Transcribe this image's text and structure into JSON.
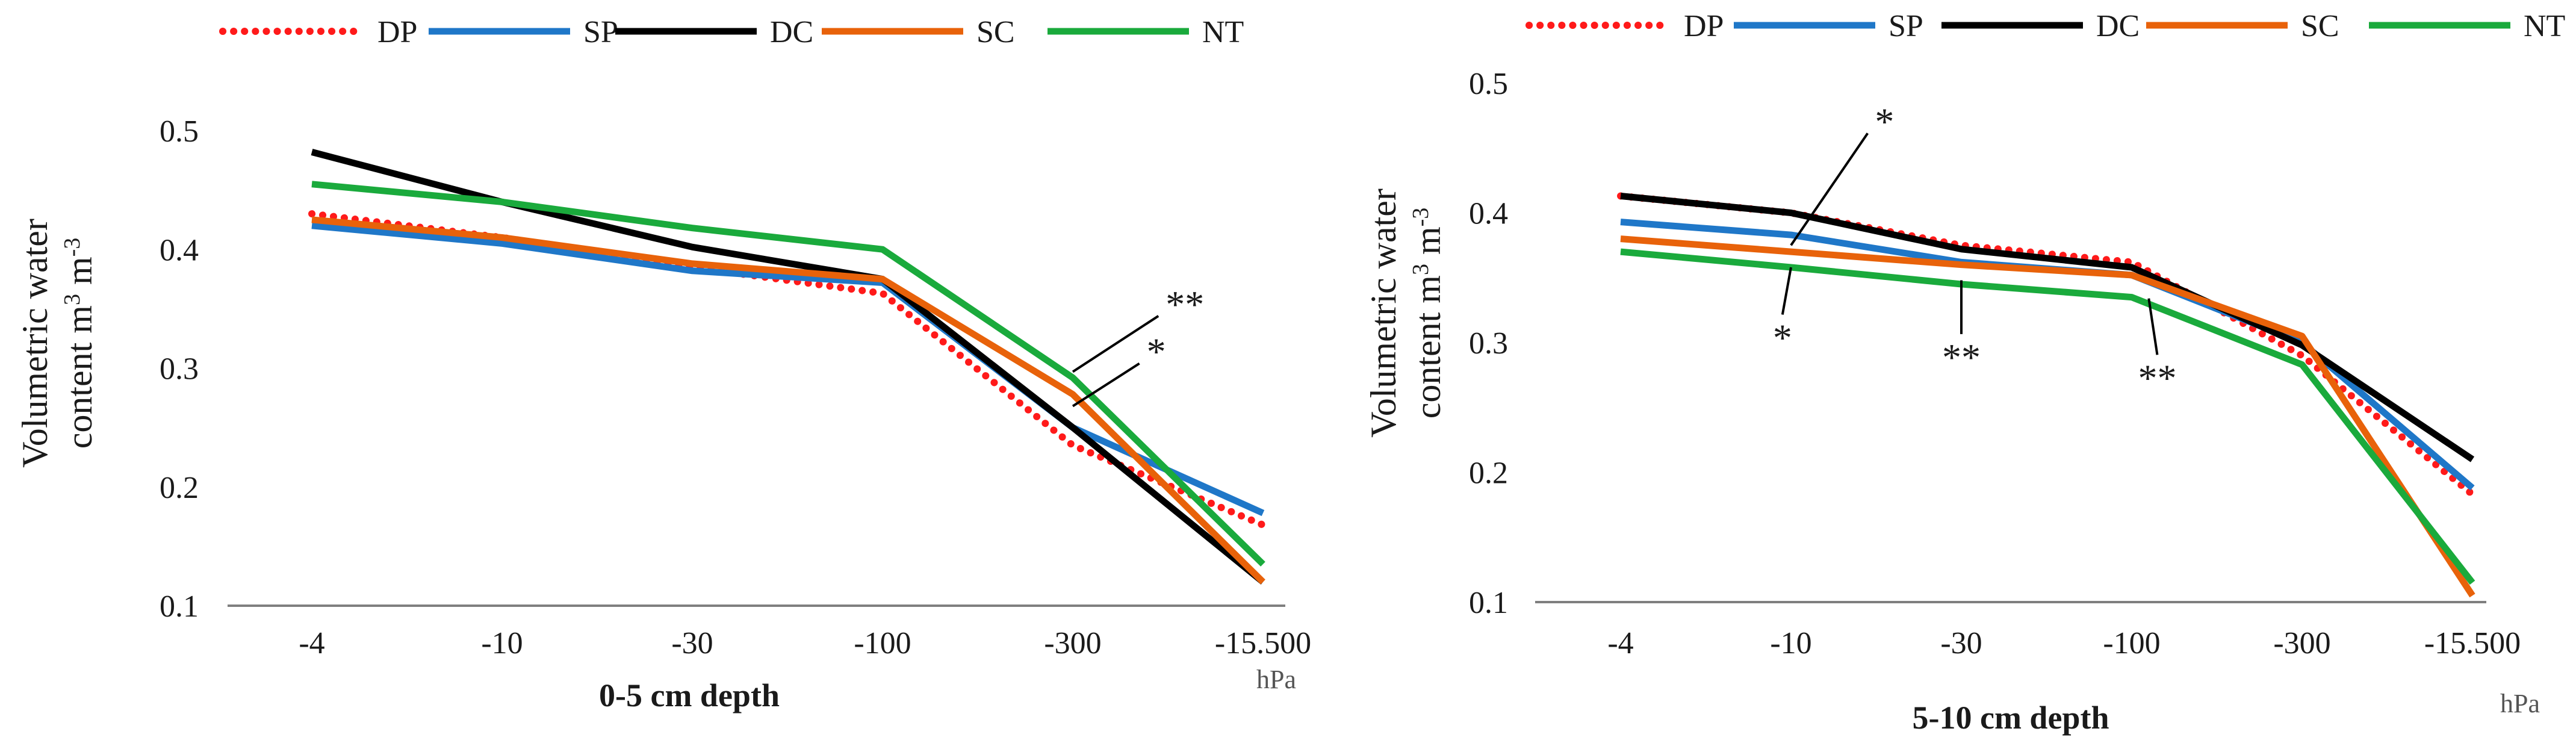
{
  "chart_data": [
    {
      "type": "line",
      "title": "",
      "xlabel": "0-5 cm depth",
      "ylabel_line1": "Volumetric water",
      "ylabel_line2": "content m",
      "ylabel_sup1": "3",
      "ylabel_mid": " m",
      "ylabel_sup2": "-3",
      "x_unit": "hPa",
      "categories": [
        "-4",
        "-10",
        "-30",
        "-100",
        "-300",
        "-15.500"
      ],
      "yticks": [
        "0.1",
        "0.2",
        "0.3",
        "0.4",
        "0.5"
      ],
      "ylim": [
        0.1,
        0.5
      ],
      "legend_position": "top",
      "series": [
        {
          "name": "DP",
          "color": "#ff1a1a",
          "style": "dotted",
          "values": [
            0.43,
            0.41,
            0.385,
            0.363,
            0.235,
            0.168
          ]
        },
        {
          "name": "SP",
          "color": "#1f77c8",
          "style": "solid",
          "values": [
            0.42,
            0.405,
            0.382,
            0.372,
            0.25,
            0.178
          ]
        },
        {
          "name": "DC",
          "color": "#000000",
          "style": "solid",
          "values": [
            0.482,
            0.44,
            0.402,
            0.375,
            0.25,
            0.12
          ]
        },
        {
          "name": "SC",
          "color": "#e8620a",
          "style": "solid",
          "values": [
            0.425,
            0.41,
            0.388,
            0.375,
            0.278,
            0.12
          ]
        },
        {
          "name": "NT",
          "color": "#1aaa3c",
          "style": "solid",
          "values": [
            0.455,
            0.44,
            0.418,
            0.4,
            0.292,
            0.135
          ]
        }
      ],
      "annotations": [
        {
          "text": "**",
          "x_index": 4.0,
          "y": 0.297,
          "label_x_index": 4.45,
          "label_y": 0.348
        },
        {
          "text": "*",
          "x_index": 4.0,
          "y": 0.268,
          "label_x_index": 4.35,
          "label_y": 0.308
        }
      ]
    },
    {
      "type": "line",
      "title": "",
      "xlabel": "5-10 cm depth",
      "ylabel_line1": "Volumetric water",
      "ylabel_line2": "content m",
      "ylabel_sup1": "3",
      "ylabel_mid": " m",
      "ylabel_sup2": "-3",
      "x_unit": "hPa",
      "categories": [
        "-4",
        "-10",
        "-30",
        "-100",
        "-300",
        "-15.500"
      ],
      "yticks": [
        "0.1",
        "0.2",
        "0.3",
        "0.4",
        "0.5"
      ],
      "ylim": [
        0.1,
        0.5
      ],
      "legend_position": "top",
      "series": [
        {
          "name": "DP",
          "color": "#ff1a1a",
          "style": "dotted",
          "values": [
            0.413,
            0.4,
            0.375,
            0.362,
            0.29,
            0.183
          ]
        },
        {
          "name": "SP",
          "color": "#1f77c8",
          "style": "solid",
          "values": [
            0.393,
            0.383,
            0.362,
            0.352,
            0.3,
            0.188
          ]
        },
        {
          "name": "DC",
          "color": "#000000",
          "style": "solid",
          "values": [
            0.413,
            0.4,
            0.372,
            0.358,
            0.298,
            0.21
          ]
        },
        {
          "name": "SC",
          "color": "#e8620a",
          "style": "solid",
          "values": [
            0.38,
            0.37,
            0.36,
            0.352,
            0.305,
            0.105
          ]
        },
        {
          "name": "NT",
          "color": "#1aaa3c",
          "style": "solid",
          "values": [
            0.37,
            0.358,
            0.345,
            0.335,
            0.283,
            0.115
          ]
        }
      ],
      "annotations": [
        {
          "text": "*",
          "x_index": 1.0,
          "y": 0.375,
          "label_x_index": 1.45,
          "label_y": 0.465
        },
        {
          "text": "*",
          "x_index": 1.0,
          "y": 0.358,
          "label_x_index": 0.95,
          "label_y": 0.303
        },
        {
          "text": "**",
          "x_index": 2.0,
          "y": 0.348,
          "label_x_index": 2.0,
          "label_y": 0.288
        },
        {
          "text": "**",
          "x_index": 3.1,
          "y": 0.334,
          "label_x_index": 3.15,
          "label_y": 0.272
        }
      ]
    }
  ]
}
